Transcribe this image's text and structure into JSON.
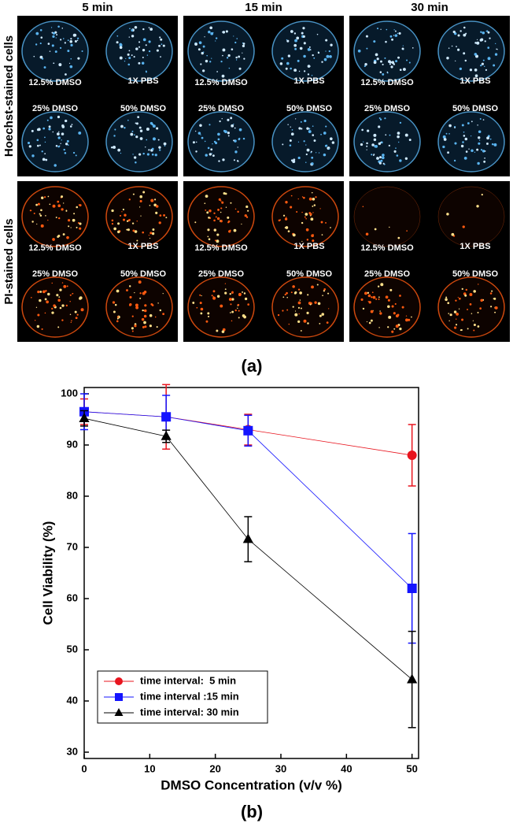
{
  "figure_a": {
    "columns": [
      "5 min",
      "15 min",
      "30 min"
    ],
    "rows": [
      "Hoechst-stained cells",
      "PI-stained cells"
    ],
    "well_labels": [
      "12.5% DMSO",
      "1X PBS",
      "25% DMSO",
      "50% DMSO"
    ],
    "caption": "(a)"
  },
  "chart_data": {
    "type": "line",
    "x_label": "DMSO Concentration (v/v %)",
    "y_label": "Cell Viability (%)",
    "x": [
      0,
      12.5,
      25,
      50
    ],
    "series": [
      {
        "name": "time interval:  5 min",
        "color": "#e8141e",
        "marker": "circle",
        "values": [
          96.5,
          95.5,
          93,
          88
        ],
        "errors": [
          2.5,
          6.3,
          3,
          6
        ]
      },
      {
        "name": "time interval :15 min",
        "color": "#1414ff",
        "marker": "square",
        "values": [
          96.5,
          95.5,
          92.8,
          62
        ],
        "errors": [
          3.5,
          4.2,
          3,
          10.7
        ]
      },
      {
        "name": "time interval: 30 min",
        "color": "#000000",
        "marker": "triangle",
        "values": [
          95.2,
          91.7,
          71.6,
          44.2
        ],
        "errors": [
          1.5,
          1.2,
          4.4,
          9.4
        ]
      }
    ],
    "xlim": [
      0,
      51
    ],
    "xticks": [
      0,
      10,
      20,
      30,
      40,
      50
    ],
    "ylim": [
      30,
      100
    ],
    "yticks": [
      30,
      40,
      50,
      60,
      70,
      80,
      90,
      100
    ],
    "legend": "lower left"
  },
  "caption_b": "(b)"
}
